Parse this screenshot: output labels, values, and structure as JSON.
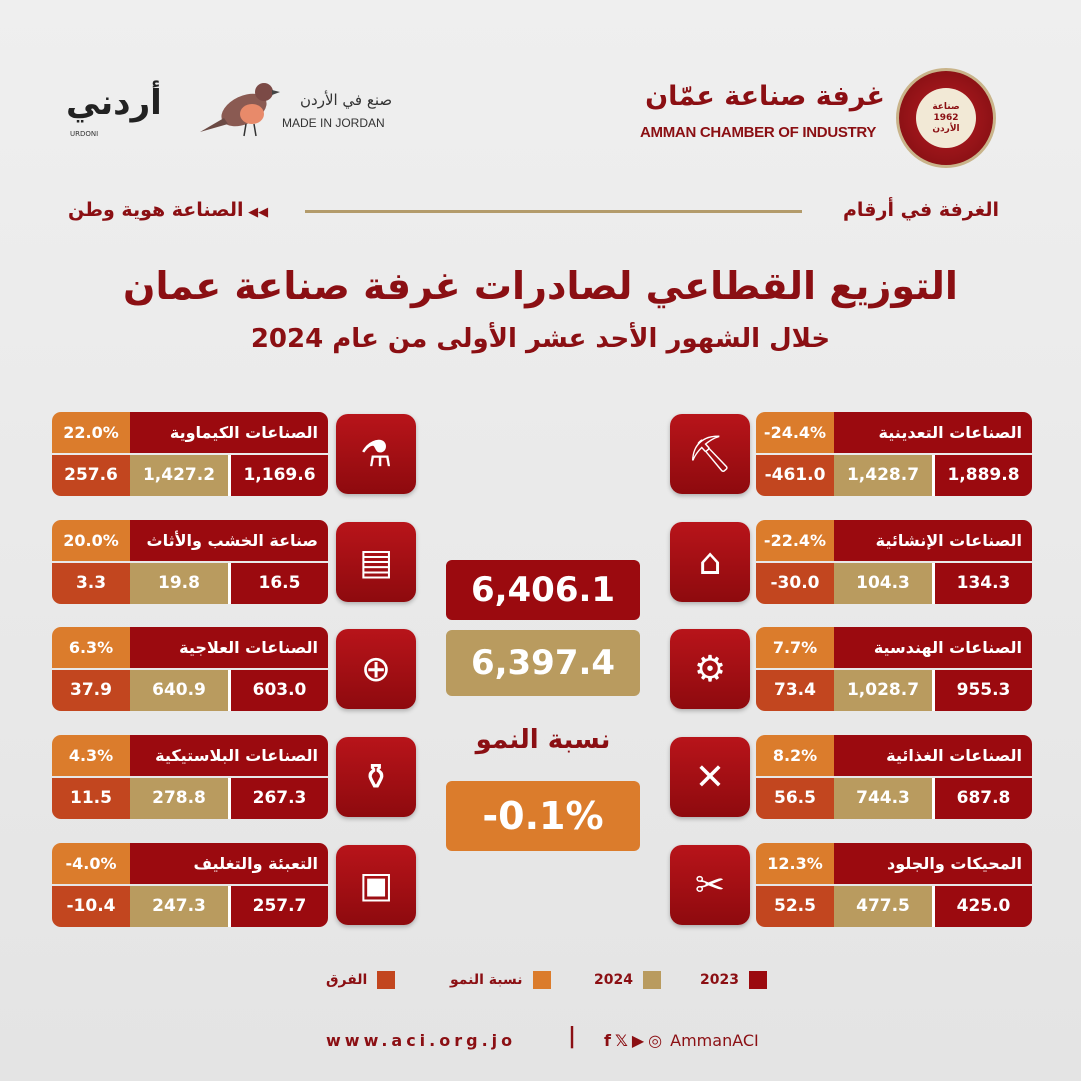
{
  "header": {
    "aci_name_ar": "غرفة صناعة عمّان",
    "aci_name_en": "AMMAN CHAMBER OF INDUSTRY",
    "aci_logo_text": "صناعة 1962 الأردن",
    "made_in_jordan_ar": "صنع في الأردن",
    "made_in_jordan_en": "MADE IN JORDAN",
    "urdoni_logo": "أردني",
    "urdoni_sub": "URDONI",
    "tag_right": "الغرفة في أرقام",
    "tag_left": "الصناعة هوية وطن"
  },
  "title": "التوزيع القطاعي لصادرات غرفة صناعة عمان",
  "subtitle": "خلال الشهور الأحد عشر الأولى من عام 2024",
  "colors": {
    "y2023": "#9b0a0f",
    "y2024": "#b99b5f",
    "growth": "#db7c2c",
    "diff": "#c2461f"
  },
  "sectors_right": [
    {
      "name": "الصناعات التعدينية",
      "growth": "-24.4%",
      "y2023": "1,889.8",
      "y2024": "1,428.7",
      "diff": "-461.0",
      "icon": "mining-pickaxe-icon"
    },
    {
      "name": "الصناعات الإنشائية",
      "growth": "-22.4%",
      "y2023": "134.3",
      "y2024": "104.3",
      "diff": "-30.0",
      "icon": "construction-crane-icon"
    },
    {
      "name": "الصناعات الهندسية",
      "growth": "7.7%",
      "y2023": "955.3",
      "y2024": "1,028.7",
      "diff": "73.4",
      "icon": "gear-wrench-icon"
    },
    {
      "name": "الصناعات الغذائية",
      "growth": "8.2%",
      "y2023": "687.8",
      "y2024": "744.3",
      "diff": "56.5",
      "icon": "spoon-fork-icon"
    },
    {
      "name": "المحيكات والجلود",
      "growth": "12.3%",
      "y2023": "425.0",
      "y2024": "477.5",
      "diff": "52.5",
      "icon": "sewing-machine-icon"
    }
  ],
  "sectors_left": [
    {
      "name": "الصناعات الكيماوية",
      "growth": "22.0%",
      "y2023": "1,169.6",
      "y2024": "1,427.2",
      "diff": "257.6",
      "icon": "flask-thermometer-icon"
    },
    {
      "name": "صناعة الخشب والأثاث",
      "growth": "20.0%",
      "y2023": "16.5",
      "y2024": "19.8",
      "diff": "3.3",
      "icon": "wood-planks-icon"
    },
    {
      "name": "الصناعات العلاجية",
      "growth": "6.3%",
      "y2023": "603.0",
      "y2024": "640.9",
      "diff": "37.9",
      "icon": "medicine-pills-icon"
    },
    {
      "name": "الصناعات البلاستيكية",
      "growth": "4.3%",
      "y2023": "267.3",
      "y2024": "278.8",
      "diff": "11.5",
      "icon": "plastic-bottles-icon"
    },
    {
      "name": "التعبئة والتغليف",
      "growth": "-4.0%",
      "y2023": "257.7",
      "y2024": "247.3",
      "diff": "-10.4",
      "icon": "open-box-icon"
    }
  ],
  "totals": {
    "y2023": "6,406.1",
    "y2024": "6,397.4",
    "growth_label": "نسبة النمو",
    "growth": "-0.1%"
  },
  "legend": {
    "y2023": "2023",
    "y2024": "2024",
    "growth": "نسبة النمو",
    "diff": "الفرق"
  },
  "footer": {
    "website": "www.aci.org.jo",
    "handle": "AmmanACI",
    "social_icons": [
      "facebook-icon",
      "x-icon",
      "youtube-icon",
      "instagram-icon"
    ]
  }
}
